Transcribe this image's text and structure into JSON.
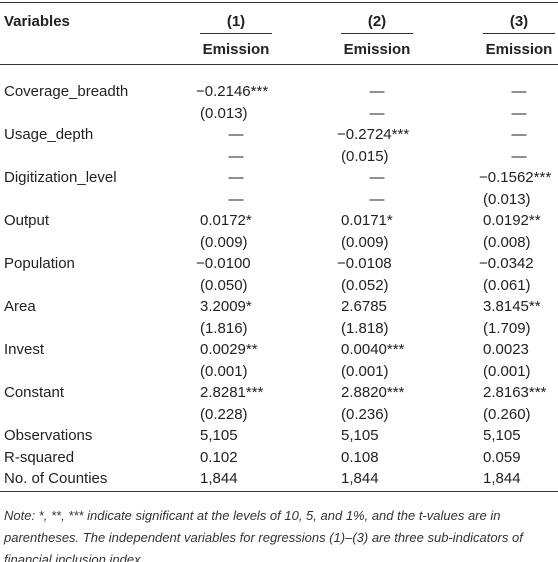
{
  "header": {
    "variables": "Variables",
    "columns": [
      "(1)",
      "(2)",
      "(3)"
    ],
    "dependent": [
      "Emission",
      "Emission",
      "Emission"
    ]
  },
  "rows": [
    {
      "label": "Coverage_breadth",
      "coef": [
        "−0.2146***",
        "—",
        "—"
      ],
      "se": [
        "(0.013)",
        "—",
        "—"
      ]
    },
    {
      "label": "Usage_depth",
      "coef": [
        "—",
        "−0.2724***",
        "—"
      ],
      "se": [
        "—",
        "(0.015)",
        "—"
      ]
    },
    {
      "label": "Digitization_level",
      "coef": [
        "—",
        "—",
        "−0.1562***"
      ],
      "se": [
        "—",
        "—",
        "(0.013)"
      ]
    },
    {
      "label": "Output",
      "coef": [
        "0.0172*",
        "0.0171*",
        "0.0192**"
      ],
      "se": [
        "(0.009)",
        "(0.009)",
        "(0.008)"
      ]
    },
    {
      "label": "Population",
      "coef": [
        "−0.0100",
        "−0.0108",
        "−0.0342"
      ],
      "se": [
        "(0.050)",
        "(0.052)",
        "(0.061)"
      ]
    },
    {
      "label": "Area",
      "coef": [
        "3.2009*",
        "2.6785",
        "3.8145**"
      ],
      "se": [
        "(1.816)",
        "(1.818)",
        "(1.709)"
      ]
    },
    {
      "label": "Invest",
      "coef": [
        "0.0029**",
        "0.0040***",
        "0.0023"
      ],
      "se": [
        "(0.001)",
        "(0.001)",
        "(0.001)"
      ]
    },
    {
      "label": "Constant",
      "coef": [
        "2.8281***",
        "2.8820***",
        "2.8163***"
      ],
      "se": [
        "(0.228)",
        "(0.236)",
        "(0.260)"
      ]
    }
  ],
  "stats": [
    {
      "label": "Observations",
      "values": [
        "5,105",
        "5,105",
        "5,105"
      ]
    },
    {
      "label": "R-squared",
      "values": [
        "0.102",
        "0.108",
        "0.059"
      ]
    },
    {
      "label": "No. of Counties",
      "values": [
        "1,844",
        "1,844",
        "1,844"
      ]
    }
  ],
  "note": "Note: *, **, *** indicate significant at the levels of 10, 5, and 1%, and the t-values are in parentheses. The independent variables for regressions (1)–(3) are three sub-indicators of financial inclusion index."
}
